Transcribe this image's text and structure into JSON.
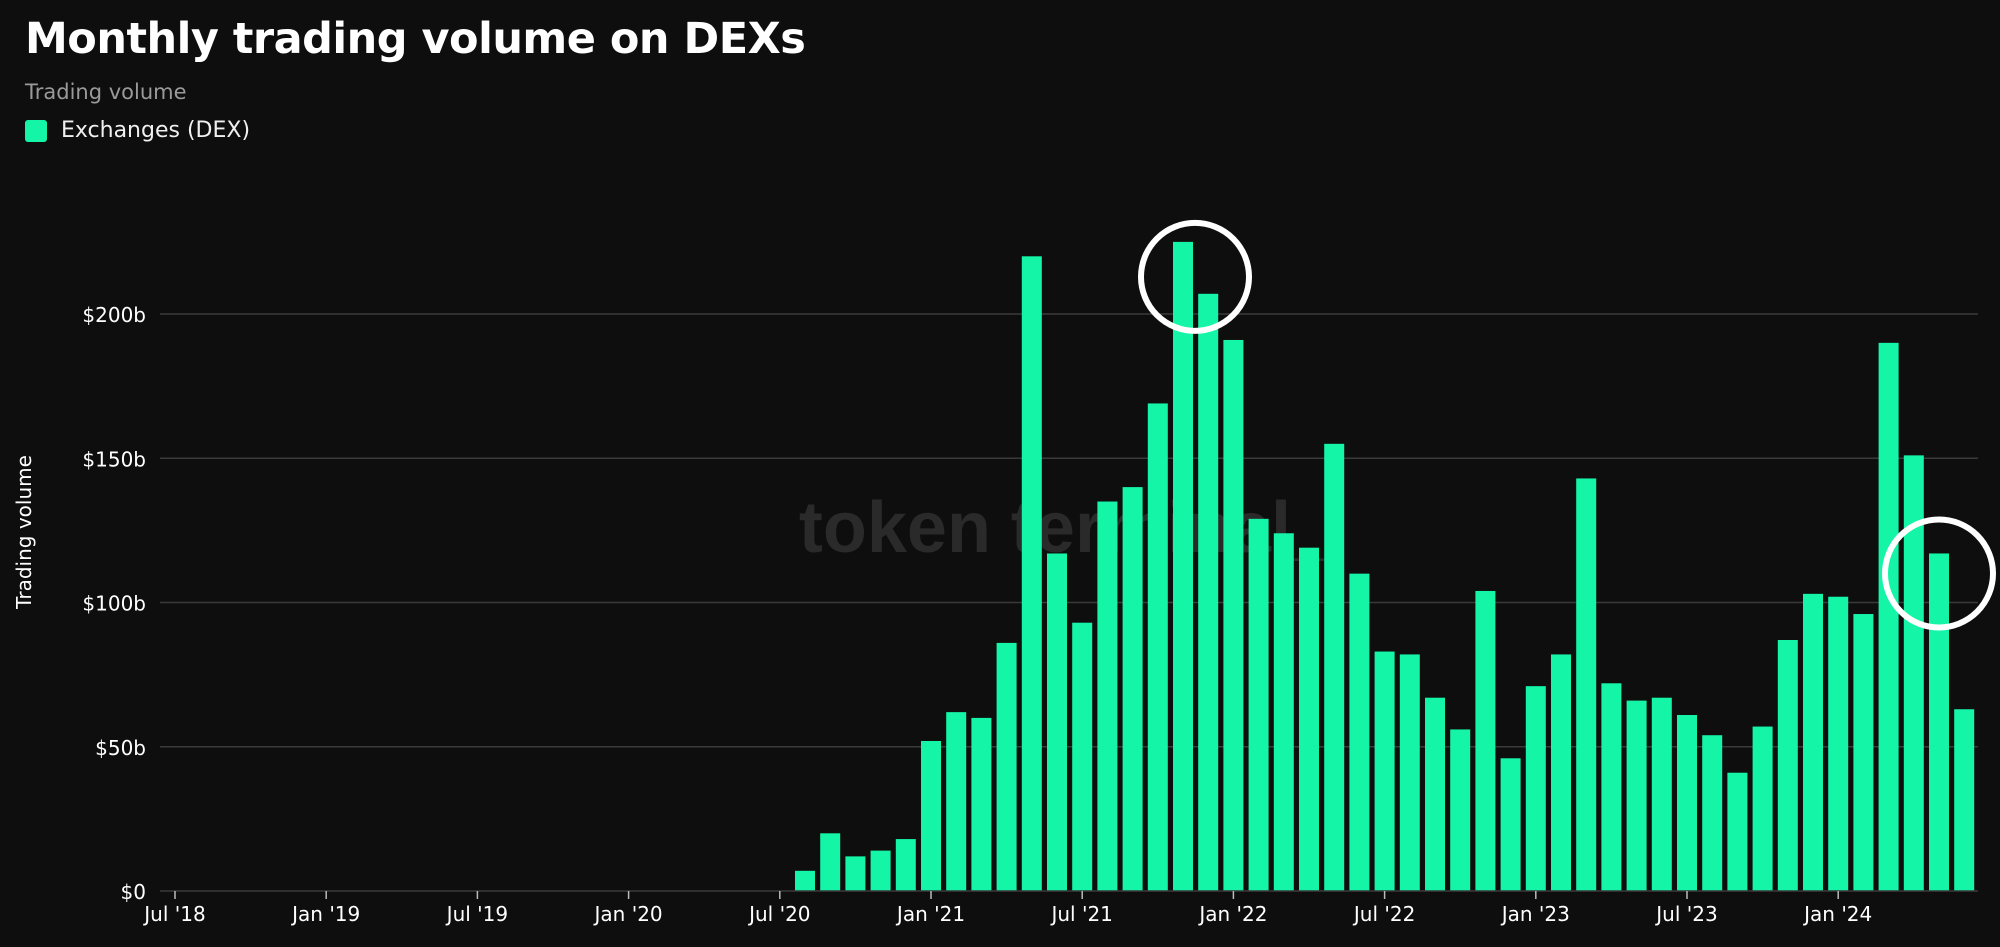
{
  "header": {
    "title": "Monthly trading volume on DEXs",
    "subtitle": "Trading volume"
  },
  "legend": {
    "label": "Exchanges (DEX)"
  },
  "watermark": "token terminal_",
  "colors": {
    "background": "#0e0e0e",
    "bar": "#14f5a8",
    "grid": "#3a3a3a",
    "tick_text": "#ffffff",
    "highlight_circle": "#ffffff",
    "watermark": "#2a2a2a"
  },
  "chart_data": {
    "type": "bar",
    "title": "Monthly trading volume on DEXs",
    "subtitle": "Trading volume",
    "xlabel": "",
    "ylabel": "Trading volume",
    "ylim": [
      0,
      230
    ],
    "y_unit": "$ billions",
    "y_ticks": [
      0,
      50,
      100,
      150,
      200
    ],
    "y_tick_labels": [
      "$0",
      "$50b",
      "$100b",
      "$150b",
      "$200b"
    ],
    "x_tick_labels": [
      "Jul '18",
      "Jan '19",
      "Jul '19",
      "Jan '20",
      "Jul '20",
      "Jan '21",
      "Jul '21",
      "Jan '22",
      "Jul '22",
      "Jan '23",
      "Jul '23",
      "Jan '24"
    ],
    "x_tick_months": [
      "2018-07",
      "2019-01",
      "2019-07",
      "2020-01",
      "2020-07",
      "2021-01",
      "2021-07",
      "2022-01",
      "2022-07",
      "2023-01",
      "2023-07",
      "2024-01"
    ],
    "legend_position": "top-left",
    "grid": true,
    "categories": [
      "2020-08",
      "2020-09",
      "2020-10",
      "2020-11",
      "2020-12",
      "2021-01",
      "2021-02",
      "2021-03",
      "2021-04",
      "2021-05",
      "2021-06",
      "2021-07",
      "2021-08",
      "2021-09",
      "2021-10",
      "2021-11",
      "2021-12",
      "2022-01",
      "2022-02",
      "2022-03",
      "2022-04",
      "2022-05",
      "2022-06",
      "2022-07",
      "2022-08",
      "2022-09",
      "2022-10",
      "2022-11",
      "2022-12",
      "2023-01",
      "2023-02",
      "2023-03",
      "2023-04",
      "2023-05",
      "2023-06",
      "2023-07",
      "2023-08",
      "2023-09",
      "2023-10",
      "2023-11",
      "2023-12",
      "2024-01",
      "2024-02",
      "2024-03",
      "2024-04",
      "2024-05",
      "2024-06"
    ],
    "series": [
      {
        "name": "Exchanges (DEX)",
        "values": [
          7,
          20,
          12,
          14,
          18,
          52,
          62,
          60,
          86,
          220,
          117,
          93,
          135,
          140,
          169,
          225,
          207,
          191,
          129,
          124,
          119,
          155,
          110,
          83,
          82,
          67,
          56,
          104,
          46,
          71,
          82,
          143,
          72,
          66,
          67,
          61,
          54,
          41,
          57,
          87,
          103,
          102,
          96,
          190,
          151,
          117,
          63
        ]
      }
    ],
    "highlighted": [
      "2021-11",
      "2024-05"
    ]
  }
}
